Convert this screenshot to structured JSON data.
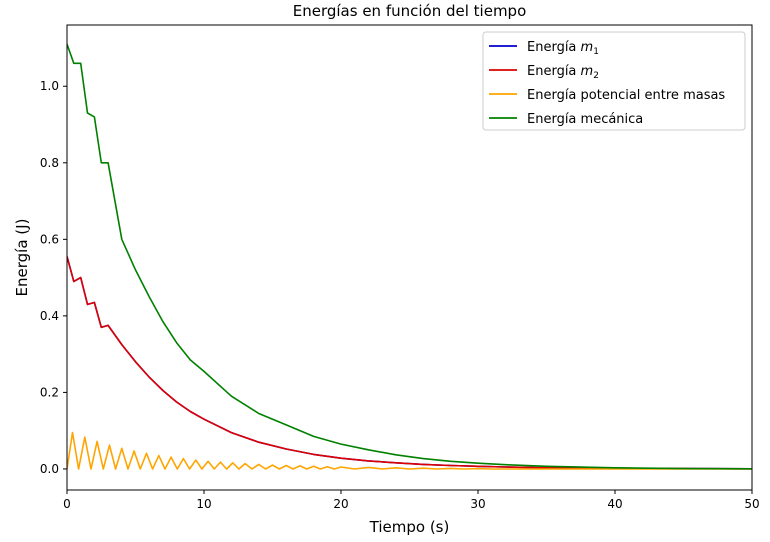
{
  "chart_data": {
    "type": "line",
    "title": "Energías en función del tiempo",
    "xlabel": "Tiempo (s)",
    "ylabel": "Energía (J)",
    "xlim": [
      0,
      50
    ],
    "ylim": [
      -0.055,
      1.16
    ],
    "xticks": [
      0,
      10,
      20,
      30,
      40,
      50
    ],
    "yticks": [
      0.0,
      0.2,
      0.4,
      0.6,
      0.8,
      1.0
    ],
    "xtick_labels": [
      "0",
      "10",
      "20",
      "30",
      "40",
      "50"
    ],
    "ytick_labels": [
      "0.0",
      "0.2",
      "0.4",
      "0.6",
      "0.8",
      "1.0"
    ],
    "grid": false,
    "legend_position": "top-right",
    "t": [
      0,
      0.5,
      1,
      1.5,
      2,
      2.5,
      3,
      4,
      5,
      6,
      7,
      8,
      9,
      10,
      12,
      14,
      16,
      18,
      20,
      22,
      24,
      26,
      28,
      30,
      32,
      35,
      40,
      45,
      50
    ],
    "series": [
      {
        "name_prefix": "Energía ",
        "name_symbol": "m",
        "name_sub": "1",
        "color": "#0000cc",
        "values": [
          0.555,
          0.49,
          0.5,
          0.43,
          0.435,
          0.37,
          0.375,
          0.325,
          0.28,
          0.24,
          0.205,
          0.175,
          0.15,
          0.13,
          0.095,
          0.07,
          0.052,
          0.038,
          0.028,
          0.021,
          0.016,
          0.012,
          0.009,
          0.007,
          0.005,
          0.003,
          0.002,
          0.001,
          0.0005
        ]
      },
      {
        "name_prefix": "Energía ",
        "name_symbol": "m",
        "name_sub": "2",
        "color": "#dd0000",
        "values": [
          0.555,
          0.49,
          0.5,
          0.43,
          0.435,
          0.37,
          0.375,
          0.325,
          0.28,
          0.24,
          0.205,
          0.175,
          0.15,
          0.13,
          0.095,
          0.07,
          0.052,
          0.038,
          0.028,
          0.021,
          0.016,
          0.012,
          0.009,
          0.007,
          0.005,
          0.003,
          0.002,
          0.001,
          0.0005
        ]
      },
      {
        "name": "Energía potencial entre masas",
        "color": "#ffa500",
        "peaks": [
          {
            "t": 0.4,
            "v": 0.095
          },
          {
            "t": 1.3,
            "v": 0.083
          },
          {
            "t": 2.2,
            "v": 0.072
          },
          {
            "t": 3.1,
            "v": 0.062
          },
          {
            "t": 4.0,
            "v": 0.054
          },
          {
            "t": 4.9,
            "v": 0.047
          },
          {
            "t": 5.8,
            "v": 0.041
          },
          {
            "t": 6.7,
            "v": 0.035
          },
          {
            "t": 7.6,
            "v": 0.031
          },
          {
            "t": 8.5,
            "v": 0.027
          },
          {
            "t": 9.4,
            "v": 0.023
          },
          {
            "t": 10.3,
            "v": 0.02
          },
          {
            "t": 11.2,
            "v": 0.018
          },
          {
            "t": 12.1,
            "v": 0.016
          },
          {
            "t": 13.0,
            "v": 0.014
          },
          {
            "t": 14.0,
            "v": 0.012
          },
          {
            "t": 15.0,
            "v": 0.01
          },
          {
            "t": 16.0,
            "v": 0.009
          },
          {
            "t": 17.0,
            "v": 0.008
          },
          {
            "t": 18.0,
            "v": 0.007
          },
          {
            "t": 19.0,
            "v": 0.006
          },
          {
            "t": 20.0,
            "v": 0.005
          },
          {
            "t": 22.0,
            "v": 0.004
          },
          {
            "t": 24.0,
            "v": 0.003
          },
          {
            "t": 26.0,
            "v": 0.002
          },
          {
            "t": 28.0,
            "v": 0.0015
          },
          {
            "t": 30.0,
            "v": 0.001
          }
        ],
        "baseline": 0.0
      },
      {
        "name": "Energía mecánica",
        "color": "#008000",
        "values": [
          1.11,
          1.06,
          1.06,
          0.93,
          0.92,
          0.8,
          0.8,
          0.6,
          0.52,
          0.45,
          0.385,
          0.33,
          0.285,
          0.255,
          0.19,
          0.145,
          0.115,
          0.085,
          0.065,
          0.05,
          0.037,
          0.027,
          0.02,
          0.015,
          0.011,
          0.007,
          0.003,
          0.001,
          0.0005
        ]
      }
    ]
  }
}
